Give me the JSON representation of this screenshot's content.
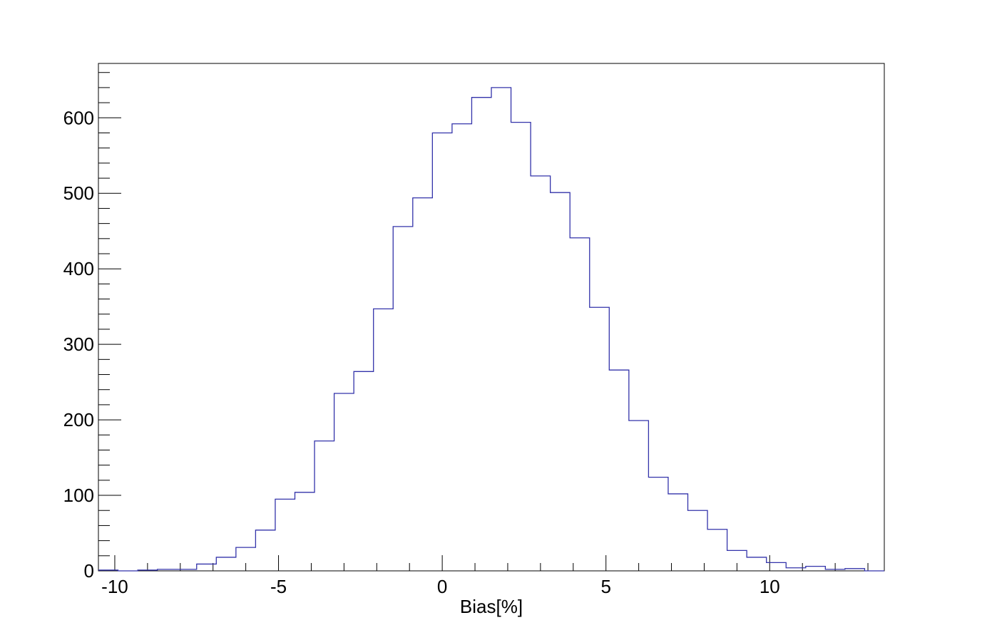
{
  "chart_data": {
    "type": "histogram",
    "title": "",
    "xlabel": "Bias[%]",
    "ylabel": "",
    "xlim": [
      -10.5,
      13.5
    ],
    "ylim": [
      0,
      672
    ],
    "bin_width": 0.6,
    "bin_edges_start": -10.5,
    "values": [
      1,
      0,
      1,
      2,
      2,
      9,
      18,
      31,
      54,
      95,
      104,
      172,
      235,
      264,
      347,
      456,
      494,
      580,
      592,
      627,
      640,
      594,
      523,
      501,
      441,
      349,
      266,
      199,
      124,
      102,
      80,
      55,
      27,
      18,
      11,
      4,
      6,
      2,
      3,
      0
    ],
    "x_ticks": [
      {
        "value": -10,
        "label": "-10"
      },
      {
        "value": -5,
        "label": "-5"
      },
      {
        "value": 0,
        "label": "0"
      },
      {
        "value": 5,
        "label": "5"
      },
      {
        "value": 10,
        "label": "10"
      }
    ],
    "y_ticks": [
      {
        "value": 0,
        "label": "0"
      },
      {
        "value": 100,
        "label": "100"
      },
      {
        "value": 200,
        "label": "200"
      },
      {
        "value": 300,
        "label": "300"
      },
      {
        "value": 400,
        "label": "400"
      },
      {
        "value": 500,
        "label": "500"
      },
      {
        "value": 600,
        "label": "600"
      }
    ],
    "x_minor_step": 1,
    "y_minor_step": 20,
    "grid": false,
    "legend": "none",
    "line_color": "#3333aa",
    "frame_color": "#000000"
  }
}
